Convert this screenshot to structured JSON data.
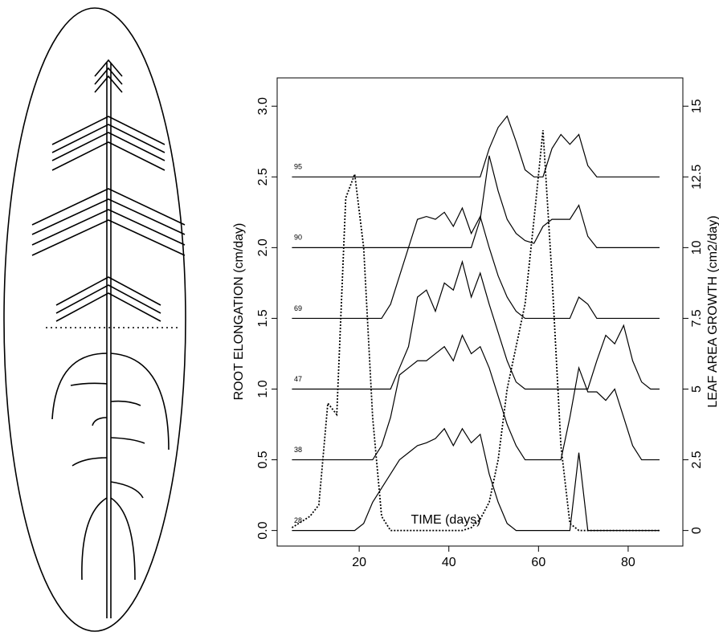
{
  "chart_data": {
    "type": "line",
    "x_label": "TIME (days)",
    "y_label": "ROOT ELONGATION (cm/day)",
    "y2_label": "LEAF AREA GROWTH (cm2/day)",
    "xlim": [
      1.7,
      92.2
    ],
    "xticks": [
      20,
      40,
      60,
      80
    ],
    "ylim": [
      -0.11,
      3.2
    ],
    "yticks": [
      {
        "value": 0,
        "label": "0.0"
      },
      {
        "value": 0.5,
        "label": "0.5"
      },
      {
        "value": 1,
        "label": "1.0"
      },
      {
        "value": 1.5,
        "label": "1.5"
      },
      {
        "value": 2,
        "label": "2.0"
      },
      {
        "value": 2.5,
        "label": "2.5"
      },
      {
        "value": 3,
        "label": "3.0"
      }
    ],
    "y2lim": [
      -0.55,
      16
    ],
    "y2ticks": [
      0,
      2.5,
      5,
      7.5,
      10,
      12.5,
      15
    ],
    "x": [
      5,
      7,
      9,
      11,
      13,
      15,
      17,
      19,
      21,
      23,
      25,
      27,
      29,
      31,
      33,
      35,
      37,
      39,
      41,
      43,
      45,
      47,
      49,
      51,
      53,
      55,
      57,
      59,
      61,
      63,
      65,
      67,
      69,
      71,
      73,
      75,
      77,
      79,
      81,
      83,
      85,
      87
    ],
    "series": [
      {
        "name": "95",
        "color": "#000000",
        "style": "solid",
        "values": [
          2.5,
          2.5,
          2.5,
          2.5,
          2.5,
          2.5,
          2.5,
          2.5,
          2.5,
          2.5,
          2.5,
          2.5,
          2.5,
          2.5,
          2.5,
          2.5,
          2.5,
          2.5,
          2.5,
          2.5,
          2.5,
          2.5,
          2.7,
          2.85,
          2.93,
          2.75,
          2.55,
          2.5,
          2.5,
          2.7,
          2.8,
          2.73,
          2.8,
          2.58,
          2.5,
          2.5,
          2.5,
          2.5,
          2.5,
          2.5,
          2.5,
          2.5
        ]
      },
      {
        "name": "90",
        "color": "#000000",
        "style": "solid",
        "values": [
          2,
          2,
          2,
          2,
          2,
          2,
          2,
          2,
          2,
          2,
          2,
          2,
          2,
          2,
          2,
          2,
          2,
          2,
          2,
          2,
          2,
          2.2,
          2.65,
          2.4,
          2.2,
          2.1,
          2.05,
          2.03,
          2.15,
          2.2,
          2.2,
          2.2,
          2.3,
          2.08,
          2,
          2,
          2,
          2,
          2,
          2,
          2,
          2
        ]
      },
      {
        "name": "69",
        "color": "#000000",
        "style": "solid",
        "values": [
          1.5,
          1.5,
          1.5,
          1.5,
          1.5,
          1.5,
          1.5,
          1.5,
          1.5,
          1.5,
          1.5,
          1.6,
          1.8,
          2.0,
          2.2,
          2.22,
          2.2,
          2.25,
          2.15,
          2.28,
          2.1,
          2.22,
          2.0,
          1.8,
          1.65,
          1.55,
          1.5,
          1.5,
          1.5,
          1.5,
          1.5,
          1.5,
          1.65,
          1.6,
          1.5,
          1.5,
          1.5,
          1.5,
          1.5,
          1.5,
          1.5,
          1.5
        ]
      },
      {
        "name": "47",
        "color": "#000000",
        "style": "solid",
        "values": [
          1,
          1,
          1,
          1,
          1,
          1,
          1,
          1,
          1,
          1,
          1,
          1,
          1.15,
          1.3,
          1.65,
          1.7,
          1.55,
          1.75,
          1.7,
          1.9,
          1.65,
          1.82,
          1.6,
          1.4,
          1.2,
          1.05,
          1,
          1,
          1,
          1,
          1,
          1,
          1,
          1,
          1.2,
          1.38,
          1.32,
          1.45,
          1.2,
          1.05,
          1,
          1
        ]
      },
      {
        "name": "38",
        "color": "#000000",
        "style": "solid",
        "values": [
          0.5,
          0.5,
          0.5,
          0.5,
          0.5,
          0.5,
          0.5,
          0.5,
          0.5,
          0.5,
          0.6,
          0.8,
          1.1,
          1.15,
          1.2,
          1.2,
          1.25,
          1.3,
          1.2,
          1.38,
          1.25,
          1.3,
          1.15,
          0.95,
          0.75,
          0.6,
          0.5,
          0.5,
          0.5,
          0.5,
          0.5,
          0.8,
          1.15,
          0.98,
          0.98,
          0.92,
          1.0,
          0.8,
          0.6,
          0.5,
          0.5,
          0.5
        ]
      },
      {
        "name": "28",
        "color": "#000000",
        "style": "solid",
        "values": [
          0,
          0,
          0,
          0,
          0,
          0,
          0,
          0,
          0.05,
          0.2,
          0.3,
          0.4,
          0.5,
          0.55,
          0.6,
          0.62,
          0.65,
          0.72,
          0.6,
          0.72,
          0.62,
          0.68,
          0.4,
          0.2,
          0.05,
          0,
          0,
          0,
          0,
          0,
          0,
          0,
          0.55,
          0,
          0,
          0,
          0,
          0,
          0,
          0,
          0,
          0
        ]
      },
      {
        "color": "#000000",
        "style": "dotted",
        "values": [
          0.02,
          0.06,
          0.1,
          0.18,
          0.9,
          0.82,
          2.35,
          2.52,
          2.0,
          0.8,
          0.1,
          0,
          0,
          0,
          0,
          0,
          0,
          0,
          0,
          0,
          0.02,
          0.08,
          0.2,
          0.5,
          1.0,
          1.3,
          1.6,
          2.2,
          2.83,
          1.8,
          0.6,
          0.05,
          0,
          0,
          0,
          0,
          0,
          0,
          0,
          0,
          0,
          0
        ]
      }
    ]
  }
}
